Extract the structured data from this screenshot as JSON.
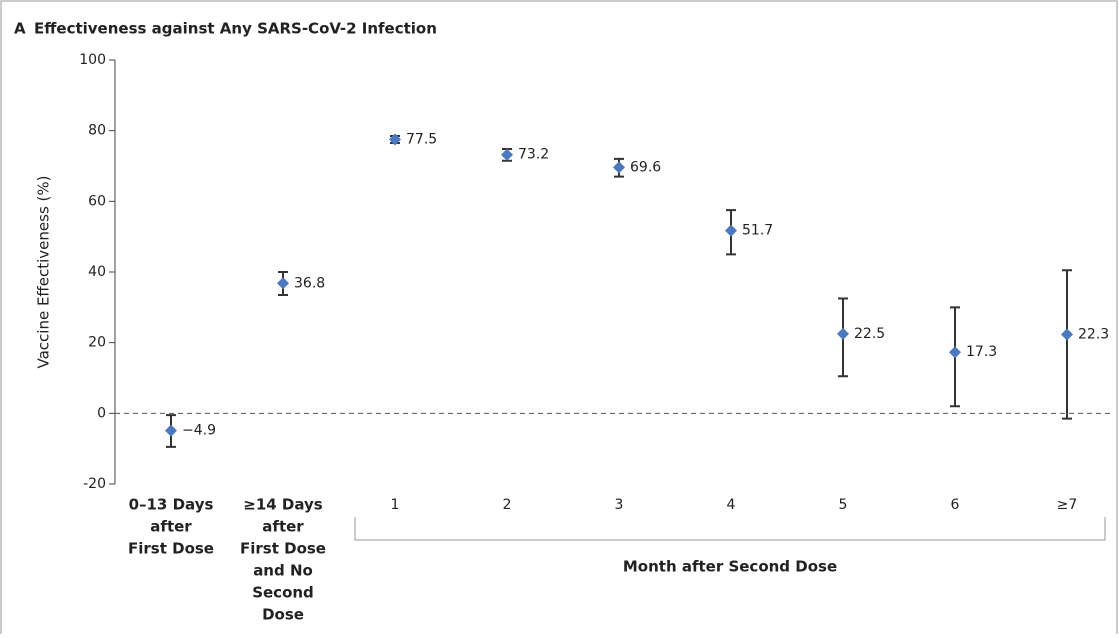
{
  "chart_data": {
    "type": "errorbar",
    "panel": "A",
    "title": "Effectiveness against Any SARS-CoV-2 Infection",
    "y_label": "Vaccine Effectiveness (%)",
    "group_label": "Month after Second Dose",
    "categories": [
      [
        "0–13 Days",
        "after",
        "First Dose"
      ],
      [
        "≥14 Days",
        "after",
        "First Dose",
        "and No",
        "Second",
        "Dose"
      ],
      [
        "1"
      ],
      [
        "2"
      ],
      [
        "3"
      ],
      [
        "4"
      ],
      [
        "5"
      ],
      [
        "6"
      ],
      [
        "≥7"
      ]
    ],
    "series": [
      {
        "color": "#4a78c2",
        "values": [
          -4.9,
          36.8,
          77.5,
          73.2,
          69.6,
          51.7,
          22.5,
          17.3,
          22.3
        ],
        "value_labels": [
          "−4.9",
          "36.8",
          "77.5",
          "73.2",
          "69.6",
          "51.7",
          "22.5",
          "17.3",
          "22.3"
        ],
        "lower": [
          -9.5,
          33.5,
          76.5,
          71.5,
          67,
          45,
          10.5,
          2,
          -1.5
        ],
        "upper": [
          -0.5,
          40,
          78.5,
          74.8,
          72,
          57.5,
          32.5,
          30,
          40.5
        ]
      }
    ],
    "ylim": [
      -20,
      100
    ],
    "yticks": [
      -20,
      0,
      20,
      40,
      60,
      80,
      100
    ]
  }
}
